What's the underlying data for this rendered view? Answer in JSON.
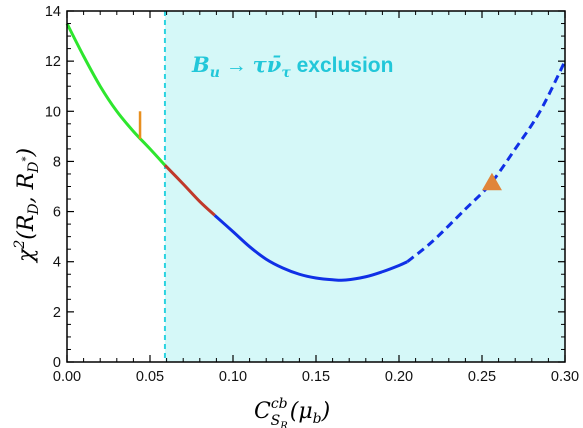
{
  "chart_data": {
    "type": "line",
    "title": "",
    "xlabel": {
      "base": "C",
      "sup": "cb",
      "sub": "S",
      "subsub": "R",
      "arg": "(μ",
      "arg_sub": "b",
      "arg_close": ")"
    },
    "ylabel": {
      "base": "χ",
      "sup": "2",
      "args_open": "(R",
      "sub1": "D",
      "comma": ", R",
      "sub2": "D",
      "sub2sup": "*",
      "close": ")"
    },
    "xlim": [
      0.0,
      0.3
    ],
    "ylim": [
      0,
      14
    ],
    "x_ticks": [
      "0.00",
      "0.05",
      "0.10",
      "0.15",
      "0.20",
      "0.25",
      "0.30"
    ],
    "y_ticks": [
      "0",
      "2",
      "4",
      "6",
      "8",
      "10",
      "12",
      "14"
    ],
    "x_tick_values": [
      0.0,
      0.05,
      0.1,
      0.15,
      0.2,
      0.25,
      0.3
    ],
    "y_tick_values": [
      0,
      2,
      4,
      6,
      8,
      10,
      12,
      14
    ],
    "curve": {
      "x": [
        0.0,
        0.01,
        0.02,
        0.03,
        0.04,
        0.05,
        0.059,
        0.07,
        0.08,
        0.089,
        0.1,
        0.11,
        0.12,
        0.13,
        0.14,
        0.15,
        0.16,
        0.168,
        0.18,
        0.19,
        0.2,
        0.205,
        0.22,
        0.24,
        0.255,
        0.27,
        0.285,
        0.3
      ],
      "y": [
        13.5,
        12.2,
        11.0,
        10.0,
        9.2,
        8.5,
        7.85,
        7.1,
        6.4,
        5.85,
        5.2,
        4.6,
        4.1,
        3.75,
        3.5,
        3.35,
        3.28,
        3.27,
        3.4,
        3.6,
        3.85,
        4.0,
        4.8,
        6.1,
        7.1,
        8.5,
        10.0,
        12.0
      ]
    },
    "segments": [
      {
        "name": "green",
        "color": "#2ee62e",
        "x_range": [
          0.0,
          0.059
        ],
        "style": "solid"
      },
      {
        "name": "red",
        "color": "#c0392b",
        "x_range": [
          0.059,
          0.089
        ],
        "style": "solid"
      },
      {
        "name": "blue-solid",
        "color": "#1030e6",
        "x_range": [
          0.089,
          0.205
        ],
        "style": "solid"
      },
      {
        "name": "blue-dashed",
        "color": "#1030e6",
        "x_range": [
          0.205,
          0.3
        ],
        "style": "dashed"
      }
    ],
    "exclusion_region": {
      "x_start": 0.059,
      "x_end": 0.3,
      "fill": "#d5f8f8",
      "boundary_color": "#2bd3e0"
    },
    "markers": [
      {
        "kind": "vertical-tick",
        "x": 0.044,
        "y_range": [
          8.9,
          10.0
        ],
        "color": "#e88f1f"
      },
      {
        "kind": "triangle",
        "x": 0.256,
        "y": 7.15,
        "color": "#e0853a"
      }
    ],
    "annotation": {
      "math_B": "B",
      "math_u": "u",
      "arrow": " → ",
      "tau": "τ",
      "nubar": "ν̄",
      "tau_sub": "τ",
      "word": " exclusion",
      "color": "#22c7d9"
    }
  }
}
